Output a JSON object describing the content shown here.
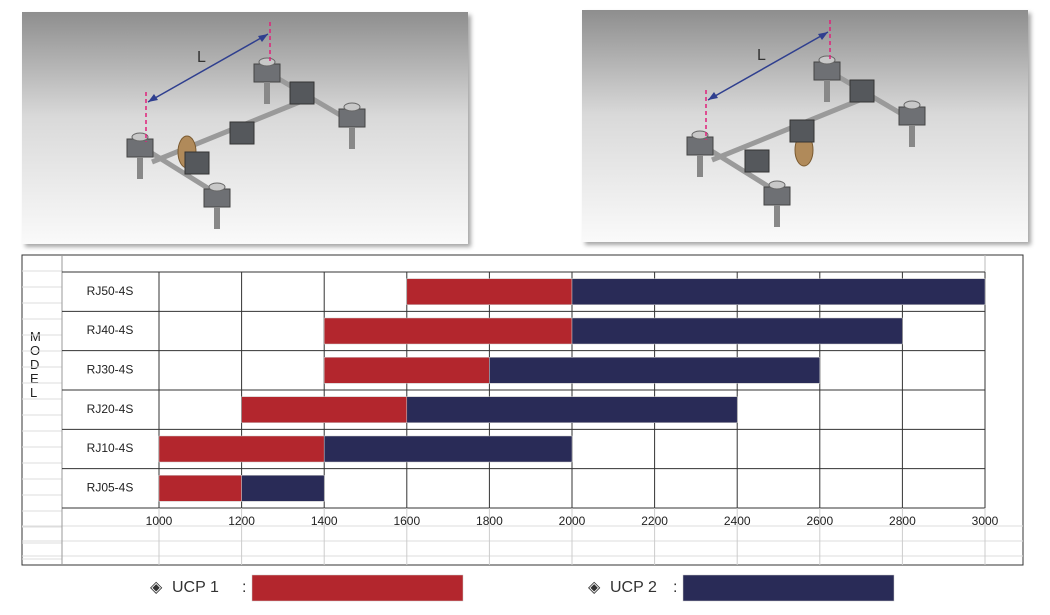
{
  "images": [
    {
      "label": "L"
    },
    {
      "label": "L"
    }
  ],
  "chart_data": {
    "type": "range-bar",
    "y_label": "MODEL",
    "categories": [
      "RJ50-4S",
      "RJ40-4S",
      "RJ30-4S",
      "RJ20-4S",
      "RJ10-4S",
      "RJ05-4S"
    ],
    "series": [
      {
        "name": "UCP 1",
        "color": "#b3262d",
        "values": [
          [
            1600,
            2000
          ],
          [
            1400,
            2000
          ],
          [
            1400,
            1800
          ],
          [
            1200,
            1600
          ],
          [
            1000,
            1400
          ],
          [
            1000,
            1200
          ]
        ]
      },
      {
        "name": "UCP 2",
        "color": "#292b57",
        "values": [
          [
            2000,
            3000
          ],
          [
            2000,
            2800
          ],
          [
            1800,
            2600
          ],
          [
            1600,
            2400
          ],
          [
            1400,
            2000
          ],
          [
            1200,
            1400
          ]
        ]
      }
    ],
    "xlim": [
      1000,
      3000
    ],
    "xticks": [
      1000,
      1200,
      1400,
      1600,
      1800,
      2000,
      2200,
      2400,
      2600,
      2800,
      3000
    ],
    "grid": true,
    "legend_symbol": "◈",
    "legend_separator": ":"
  }
}
